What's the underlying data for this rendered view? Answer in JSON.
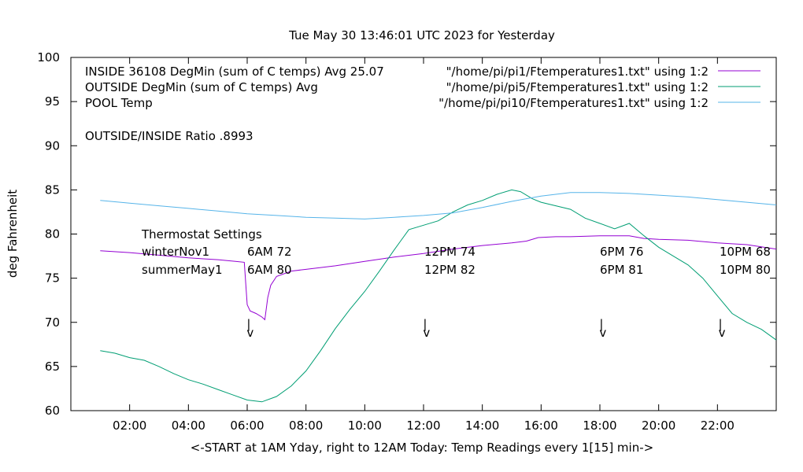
{
  "chart_data": {
    "type": "line",
    "title": "Tue May 30 13:46:01 UTC 2023 for Yesterday",
    "xlabel": "<-START at 1AM Yday, right to 12AM Today:  Temp Readings every 1[15] min->",
    "ylabel": "deg Fahrenheit",
    "xlim": [
      0.0,
      24.0
    ],
    "ylim": [
      60,
      100
    ],
    "x_ticks": [
      {
        "x": 2,
        "label": "02:00"
      },
      {
        "x": 4,
        "label": "04:00"
      },
      {
        "x": 6,
        "label": "06:00"
      },
      {
        "x": 8,
        "label": "08:00"
      },
      {
        "x": 10,
        "label": "10:00"
      },
      {
        "x": 12,
        "label": "12:00"
      },
      {
        "x": 14,
        "label": "14:00"
      },
      {
        "x": 16,
        "label": "16:00"
      },
      {
        "x": 18,
        "label": "18:00"
      },
      {
        "x": 20,
        "label": "20:00"
      },
      {
        "x": 22,
        "label": "22:00"
      }
    ],
    "y_ticks": [
      {
        "y": 60,
        "label": "60"
      },
      {
        "y": 65,
        "label": "65"
      },
      {
        "y": 70,
        "label": "70"
      },
      {
        "y": 75,
        "label": "75"
      },
      {
        "y": 80,
        "label": "80"
      },
      {
        "y": 85,
        "label": "85"
      },
      {
        "y": 90,
        "label": "90"
      },
      {
        "y": 95,
        "label": "95"
      },
      {
        "y": 100,
        "label": "100"
      }
    ],
    "grid": false,
    "legend_position": "top",
    "series": [
      {
        "name": "INSIDE 36108 DegMin (sum of C temps) Avg 25.07",
        "source": "\"/home/pi/pi1/Ftemperatures1.txt\" using 1:2",
        "color": "#9400d3",
        "x": [
          1.0,
          2.0,
          3.0,
          4.0,
          5.0,
          5.6,
          5.9,
          6.0,
          6.1,
          6.3,
          6.5,
          6.6,
          6.7,
          6.8,
          7.0,
          7.5,
          8.0,
          9.0,
          10.0,
          11.0,
          12.0,
          13.0,
          14.0,
          15.0,
          15.5,
          15.9,
          16.5,
          17.0,
          18.0,
          19.0,
          19.5,
          20.0,
          21.0,
          22.0,
          23.0,
          24.0
        ],
        "y": [
          78.1,
          77.9,
          77.6,
          77.3,
          77.1,
          76.9,
          76.8,
          72.0,
          71.3,
          71.0,
          70.6,
          70.3,
          72.8,
          74.2,
          75.2,
          75.8,
          76.0,
          76.4,
          76.9,
          77.4,
          77.8,
          78.3,
          78.7,
          79.0,
          79.2,
          79.6,
          79.7,
          79.7,
          79.8,
          79.8,
          79.5,
          79.4,
          79.3,
          79.0,
          78.8,
          78.3
        ]
      },
      {
        "name": "OUTSIDE  DegMin (sum of C temps) Avg",
        "source": "\"/home/pi/pi5/Ftemperatures1.txt\" using 1:2",
        "color": "#009e73",
        "x": [
          1.0,
          1.5,
          2.0,
          2.5,
          3.0,
          3.5,
          4.0,
          4.5,
          5.0,
          5.5,
          6.0,
          6.5,
          7.0,
          7.5,
          8.0,
          8.5,
          9.0,
          9.5,
          10.0,
          10.5,
          11.0,
          11.5,
          12.0,
          12.5,
          13.0,
          13.5,
          14.0,
          14.5,
          15.0,
          15.3,
          15.7,
          16.0,
          16.5,
          17.0,
          17.5,
          18.0,
          18.5,
          19.0,
          19.5,
          20.0,
          20.5,
          21.0,
          21.5,
          22.0,
          22.5,
          23.0,
          23.5,
          24.0
        ],
        "y": [
          66.8,
          66.5,
          66.0,
          65.7,
          65.0,
          64.2,
          63.5,
          63.0,
          62.4,
          61.8,
          61.2,
          61.0,
          61.6,
          62.8,
          64.5,
          66.8,
          69.3,
          71.5,
          73.5,
          75.8,
          78.2,
          80.5,
          81.0,
          81.5,
          82.5,
          83.3,
          83.8,
          84.5,
          85.0,
          84.8,
          84.0,
          83.6,
          83.2,
          82.8,
          81.8,
          81.2,
          80.6,
          81.2,
          79.8,
          78.5,
          77.5,
          76.5,
          75.0,
          73.0,
          71.0,
          70.0,
          69.2,
          68.0
        ]
      },
      {
        "name": "POOL Temp",
        "source": "\"/home/pi/pi10/Ftemperatures1.txt\" using 1:2",
        "color": "#56b4e9",
        "x": [
          1.0,
          2.0,
          3.0,
          4.0,
          5.0,
          6.0,
          7.0,
          8.0,
          9.0,
          10.0,
          11.0,
          12.0,
          13.0,
          14.0,
          15.0,
          16.0,
          17.0,
          18.0,
          19.0,
          20.0,
          21.0,
          22.0,
          23.0,
          24.0
        ],
        "y": [
          83.8,
          83.5,
          83.2,
          82.9,
          82.6,
          82.3,
          82.1,
          81.9,
          81.8,
          81.7,
          81.9,
          82.1,
          82.4,
          83.0,
          83.7,
          84.3,
          84.7,
          84.7,
          84.6,
          84.4,
          84.2,
          83.9,
          83.6,
          83.3
        ]
      }
    ],
    "annotations": {
      "ratio_text": "OUTSIDE/INSIDE Ratio .8993",
      "thermostat_title": "Thermostat Settings",
      "thermostat_rows": [
        {
          "name": "winterNov1",
          "settings": [
            "6AM 72",
            "12PM 74",
            "6PM 76",
            "10PM 68"
          ]
        },
        {
          "name": "summerMay1",
          "settings": [
            "6AM 80",
            "12PM 82",
            "6PM 81",
            "10PM 80"
          ]
        }
      ],
      "markers": [
        {
          "x": 6.05,
          "glyph_bar": "|",
          "glyph_arrow": "v"
        },
        {
          "x": 12.05,
          "glyph_bar": "|",
          "glyph_arrow": "v"
        },
        {
          "x": 18.05,
          "glyph_bar": "|",
          "glyph_arrow": "v"
        },
        {
          "x": 22.1,
          "glyph_bar": "|",
          "glyph_arrow": "v"
        }
      ]
    }
  }
}
